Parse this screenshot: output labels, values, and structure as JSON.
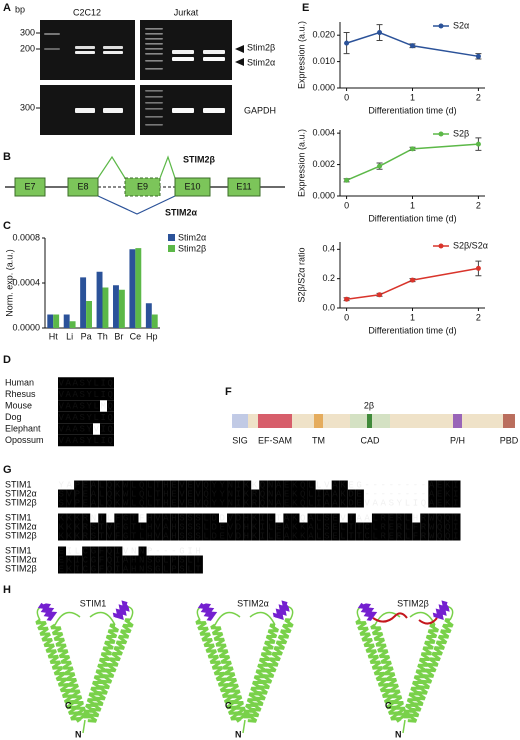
{
  "panel_labels": [
    "A",
    "B",
    "C",
    "D",
    "E",
    "F",
    "G",
    "H"
  ],
  "gel": {
    "unit": "bp",
    "markers": [
      300,
      200,
      300
    ],
    "lanes": [
      "C2C12",
      "Jurkat"
    ],
    "bands": [
      "Stim2β",
      "Stim2α"
    ],
    "control": "GAPDH"
  },
  "exons": {
    "labels": [
      "E7",
      "E8",
      "E9",
      "E10",
      "E11"
    ],
    "isoforms": [
      "STIM2β",
      "STIM2α"
    ]
  },
  "species_alignment": {
    "rows": [
      {
        "species": "Human",
        "sequence": "VAASYLIQ"
      },
      {
        "species": "Rhesus",
        "sequence": "VAASYLIQ"
      },
      {
        "species": "Mouse",
        "sequence": "VAASYLMQ"
      },
      {
        "species": "Dog",
        "sequence": "VAASYLIQ"
      },
      {
        "species": "Elephant",
        "sequence": "VAASYVIQ"
      },
      {
        "species": "Opossum",
        "sequence": "VAASYLIQ"
      }
    ]
  },
  "chart_data": [
    {
      "type": "bar",
      "ylabel": "Norm. exp. (a.u.)",
      "categories": [
        "Ht",
        "Li",
        "Pa",
        "Th",
        "Br",
        "Ce",
        "Hp"
      ],
      "series": [
        {
          "name": "Stim2α",
          "color": "#2b5299",
          "values": [
            0.00012,
            0.00012,
            0.00045,
            0.0005,
            0.00038,
            0.0007,
            0.00022
          ]
        },
        {
          "name": "Stim2β",
          "color": "#5cb848",
          "values": [
            0.00012,
            6e-05,
            0.00024,
            0.00036,
            0.00034,
            0.00071,
            0.00012
          ]
        }
      ],
      "ylim": [
        0,
        0.0008
      ],
      "yticks": [
        {
          "value": 0,
          "label": "0.0000"
        },
        0.0004,
        0.0008
      ]
    },
    {
      "type": "line",
      "xlabel": "Differentiation time (d)",
      "ylabel": "Expression (a.u.)",
      "x": [
        0,
        0.5,
        1,
        2
      ],
      "xlim": [
        -0.1,
        2.1
      ],
      "xticks": [
        0,
        1,
        2
      ],
      "ylim": [
        0,
        0.025
      ],
      "yticks": [
        {
          "value": 0,
          "label": "0.000"
        },
        {
          "value": 0.01,
          "label": "0.010"
        },
        {
          "value": 0.02,
          "label": "0.020"
        }
      ],
      "series": [
        {
          "name": "S2α",
          "color": "#2b5299",
          "values": [
            0.017,
            0.021,
            0.016,
            0.012
          ],
          "errors": [
            0.004,
            0.003,
            0.0007,
            0.001
          ]
        }
      ]
    },
    {
      "type": "line",
      "xlabel": "Differentiation time (d)",
      "ylabel": "Expression (a.u.)",
      "x": [
        0,
        0.5,
        1,
        2
      ],
      "xlim": [
        -0.1,
        2.1
      ],
      "xticks": [
        0,
        1,
        2
      ],
      "ylim": [
        0,
        0.0042
      ],
      "yticks": [
        {
          "value": 0,
          "label": "0.000"
        },
        0.002,
        0.004
      ],
      "series": [
        {
          "name": "S2β",
          "color": "#5cb848",
          "values": [
            0.001,
            0.0019,
            0.003,
            0.0033
          ],
          "errors": [
            0.0001,
            0.0002,
            0.0001,
            0.0004
          ]
        }
      ]
    },
    {
      "type": "line",
      "xlabel": "Differentiation time (d)",
      "ylabel": "S2β/S2α ratio",
      "x": [
        0,
        0.5,
        1,
        2
      ],
      "xlim": [
        -0.1,
        2.1
      ],
      "xticks": [
        0,
        1,
        2
      ],
      "ylim": [
        0,
        0.45
      ],
      "yticks": [
        {
          "value": 0,
          "label": "0.0"
        },
        0.2,
        0.4
      ],
      "series": [
        {
          "name": "S2β/S2α",
          "color": "#d9342b",
          "values": [
            0.06,
            0.09,
            0.19,
            0.27
          ],
          "errors": [
            0.01,
            0.01,
            0.01,
            0.05
          ]
        }
      ]
    }
  ],
  "domains": {
    "insert": "2β",
    "labels": [
      "SIG",
      "EF-SAM",
      "TM",
      "CAD",
      "P/H",
      "PBD"
    ]
  },
  "sequence_alignment": {
    "names": [
      "STIM1",
      "STIM2α",
      "STIM2β"
    ],
    "blocks": [
      [
        "YAPEALQKWLQLTHEVEVQYYNIKKQNAEKQLLVAKEG--------AEKI",
        "SVPEALQKWLQLTHEVEVQYYNIKRQNAEKQLIAAKDE--------AEKI",
        "SVPEALQKWLQLTHEVEVQYYNIKRQNAEKQLIAAKDEVAASYLIQAEKI"
      ],
      [
        "KKKRNTLFGTFHVAHSSSLDDVDHKILTAKQALSEVTAALRERLHRWQQI",
        "KKKRSTVFGTLHVAHSSSLDEVDHKILEAKKALSELTTCLRERLFRWQQI",
        "KKKRSTVFGTLHVAHSSSLDEVDHKILEAKKALSELTTCLRERLFRWQQI"
      ],
      [
        "EILCGFQIVNNP---GIH",
        "EKICGFQIAHNSGLPSLT",
        "EKICGFQIAHNSGLPSLT"
      ]
    ]
  },
  "structures": {
    "titles": [
      "STIM1",
      "STIM2α",
      "STIM2β"
    ],
    "termini": [
      "C",
      "N"
    ]
  }
}
